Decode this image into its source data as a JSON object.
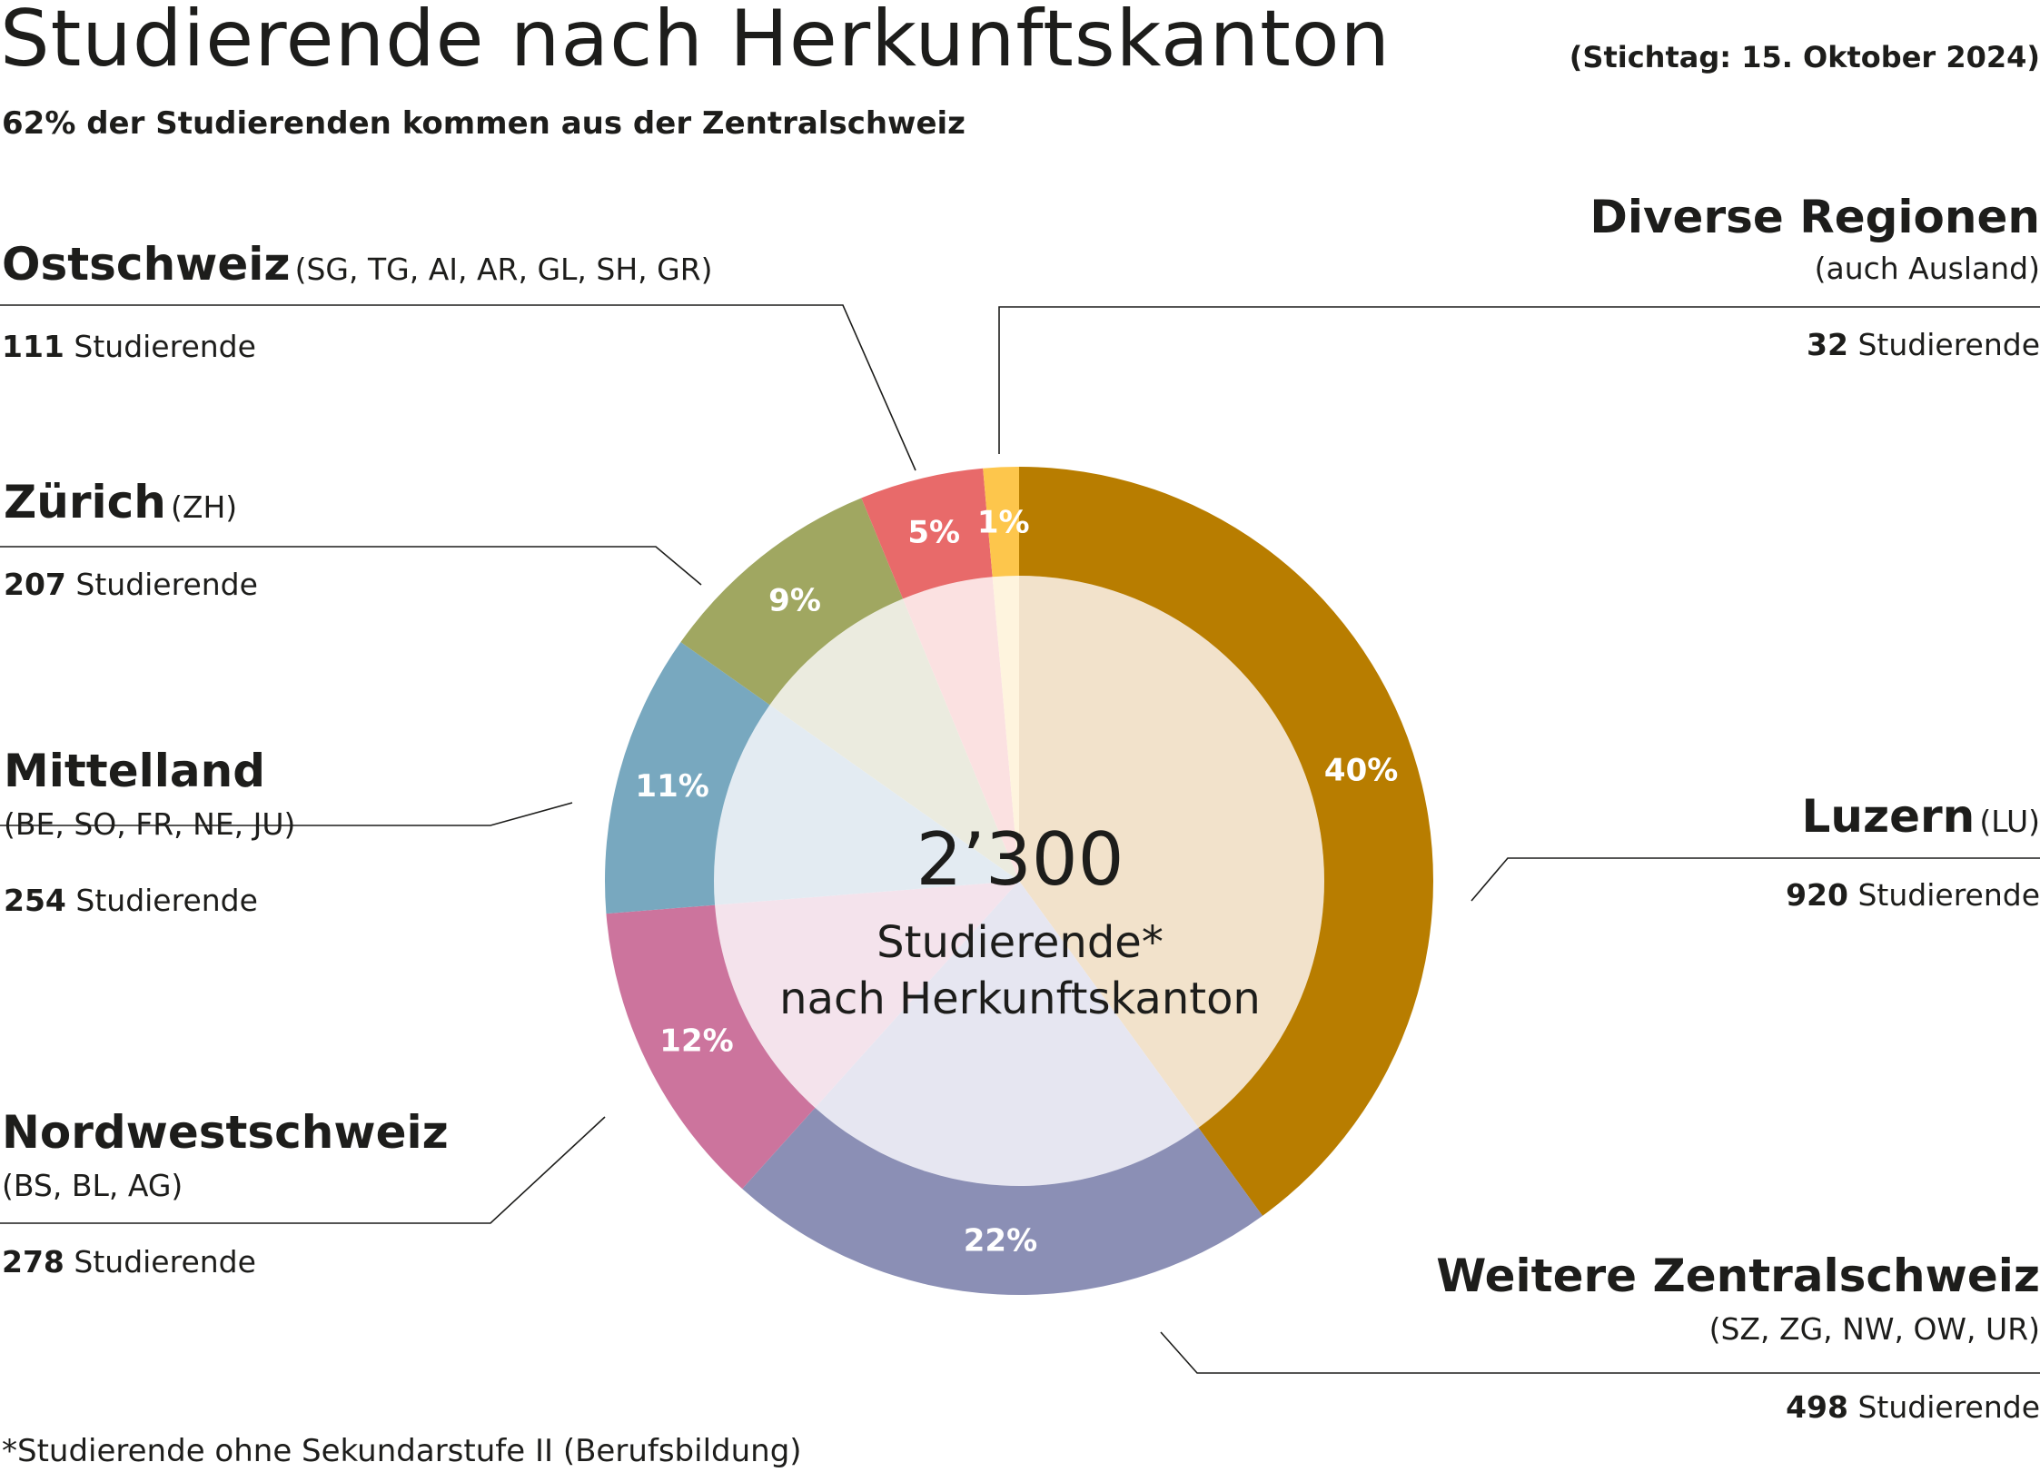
{
  "title": "Studierende nach Herkunftskanton",
  "stichtag": "(Stichtag: 15. Oktober 2024)",
  "subtitle": "62% der Studierenden kommen aus der Zentralschweiz",
  "footnote": "*Studierende ohne Sekundarstufe II (Berufsbildung)",
  "center": {
    "total": "2’300",
    "line1": "Studierende*",
    "line2": "nach Herkunftskanton"
  },
  "regions": {
    "ostschweiz": {
      "name": "Ostschweiz",
      "codes": "(SG, TG, AI, AR, GL, SH, GR)",
      "count": "111",
      "unit": "Studierende"
    },
    "zuerich": {
      "name": "Zürich",
      "codes": "(ZH)",
      "count": "207",
      "unit": "Studierende"
    },
    "mittelland": {
      "name": "Mittelland",
      "codes": "(BE, SO, FR, NE, JU)",
      "count": "254",
      "unit": "Studierende"
    },
    "nordwestschweiz": {
      "name": "Nordwestschweiz",
      "codes": "(BS, BL, AG)",
      "count": "278",
      "unit": "Studierende"
    },
    "diverse": {
      "name": "Diverse Regionen",
      "codes": "(auch Ausland)",
      "count": "32",
      "unit": "Studierende"
    },
    "luzern": {
      "name": "Luzern",
      "codes": "(LU)",
      "count": "920",
      "unit": "Studierende"
    },
    "weitere": {
      "name": "Weitere Zentralschweiz",
      "codes": "(SZ, ZG, NW, OW, UR)",
      "count": "498",
      "unit": "Studierende"
    }
  },
  "chart_data": {
    "type": "pie",
    "total": 2300,
    "slices": [
      {
        "label": "Luzern",
        "value": 920,
        "percent_label": "40%",
        "color": "#b87d00",
        "inner_color": "#f2e2cb"
      },
      {
        "label": "Weitere Zentralschweiz",
        "value": 498,
        "percent_label": "22%",
        "color": "#8b8fb5",
        "inner_color": "#e6e6f1"
      },
      {
        "label": "Nordwestschweiz",
        "value": 278,
        "percent_label": "12%",
        "color": "#cc749d",
        "inner_color": "#f4e3ec"
      },
      {
        "label": "Mittelland",
        "value": 254,
        "percent_label": "11%",
        "color": "#78a8bf",
        "inner_color": "#e3ebf2"
      },
      {
        "label": "Zürich",
        "value": 207,
        "percent_label": "9%",
        "color": "#a0a761",
        "inner_color": "#ebebdf"
      },
      {
        "label": "Ostschweiz",
        "value": 111,
        "percent_label": "5%",
        "color": "#e86a6a",
        "inner_color": "#fbe1e1"
      },
      {
        "label": "Diverse Regionen",
        "value": 32,
        "percent_label": "1%",
        "color": "#fdc64c",
        "inner_color": "#fef4de"
      }
    ]
  }
}
